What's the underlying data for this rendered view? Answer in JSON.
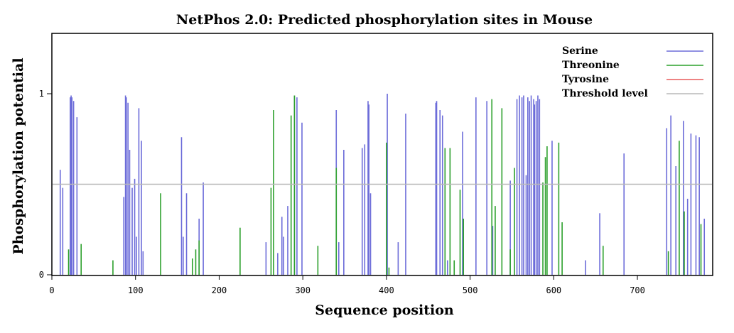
{
  "chart_data": {
    "type": "bar",
    "title": "NetPhos 2.0: Predicted phosphorylation sites in Mouse",
    "xlabel": "Sequence position",
    "ylabel": "Phosphorylation potential",
    "xlim": [
      0,
      790
    ],
    "ylim": [
      0,
      1.0
    ],
    "xticks": [
      0,
      100,
      200,
      300,
      400,
      500,
      600,
      700
    ],
    "yticks": [
      0,
      1
    ],
    "ytick_labels": [
      "0",
      "1"
    ],
    "threshold": 0.5,
    "grid": false,
    "legend_position": "top-right",
    "series": [
      {
        "name": "Serine",
        "color": "#6c6cd9",
        "x": [
          10,
          13,
          22,
          23,
          24,
          26,
          30,
          86,
          88,
          89,
          91,
          93,
          96,
          99,
          101,
          104,
          107,
          109,
          155,
          157,
          161,
          176,
          181,
          256,
          270,
          275,
          277,
          282,
          290,
          293,
          299,
          340,
          343,
          349,
          371,
          374,
          378,
          379,
          381,
          401,
          414,
          423,
          459,
          460,
          464,
          467,
          473,
          491,
          507,
          520,
          527,
          548,
          556,
          559,
          562,
          564,
          567,
          569,
          571,
          573,
          576,
          577,
          579,
          581,
          583,
          598,
          638,
          655,
          684,
          735,
          740,
          746,
          755,
          760,
          764,
          770,
          774,
          780
        ],
        "values": [
          0.58,
          0.48,
          0.98,
          0.99,
          0.98,
          0.96,
          0.87,
          0.43,
          0.99,
          0.98,
          0.95,
          0.69,
          0.48,
          0.53,
          0.21,
          0.92,
          0.74,
          0.13,
          0.76,
          0.21,
          0.45,
          0.31,
          0.51,
          0.18,
          0.12,
          0.32,
          0.21,
          0.38,
          0.99,
          0.98,
          0.84,
          0.91,
          0.18,
          0.69,
          0.7,
          0.72,
          0.96,
          0.94,
          0.45,
          1.0,
          0.18,
          0.89,
          0.95,
          0.96,
          0.91,
          0.88,
          0.08,
          0.79,
          0.98,
          0.96,
          0.27,
          0.52,
          0.97,
          0.99,
          0.98,
          0.99,
          0.55,
          0.98,
          0.96,
          0.99,
          0.97,
          0.94,
          0.96,
          0.99,
          0.97,
          0.74,
          0.08,
          0.34,
          0.67,
          0.81,
          0.88,
          0.6,
          0.85,
          0.42,
          0.78,
          0.77,
          0.76,
          0.31
        ]
      },
      {
        "name": "Threonine",
        "color": "#2ca02c",
        "x": [
          20,
          35,
          73,
          130,
          168,
          172,
          176,
          225,
          262,
          265,
          286,
          290,
          318,
          340,
          400,
          403,
          470,
          476,
          481,
          488,
          492,
          526,
          530,
          538,
          548,
          553,
          587,
          590,
          592,
          606,
          610,
          659,
          737,
          750,
          756,
          776
        ],
        "values": [
          0.14,
          0.17,
          0.08,
          0.45,
          0.09,
          0.14,
          0.19,
          0.26,
          0.48,
          0.91,
          0.88,
          0.99,
          0.16,
          0.59,
          0.73,
          0.04,
          0.7,
          0.7,
          0.08,
          0.47,
          0.31,
          0.97,
          0.38,
          0.92,
          0.14,
          0.59,
          0.51,
          0.65,
          0.71,
          0.73,
          0.29,
          0.16,
          0.13,
          0.74,
          0.35,
          0.28
        ]
      },
      {
        "name": "Tyrosine",
        "color": "#e85a5a",
        "x": [],
        "values": []
      },
      {
        "name": "Threshold level",
        "color": "#b8b8b8",
        "values": [
          0.5
        ]
      }
    ]
  }
}
